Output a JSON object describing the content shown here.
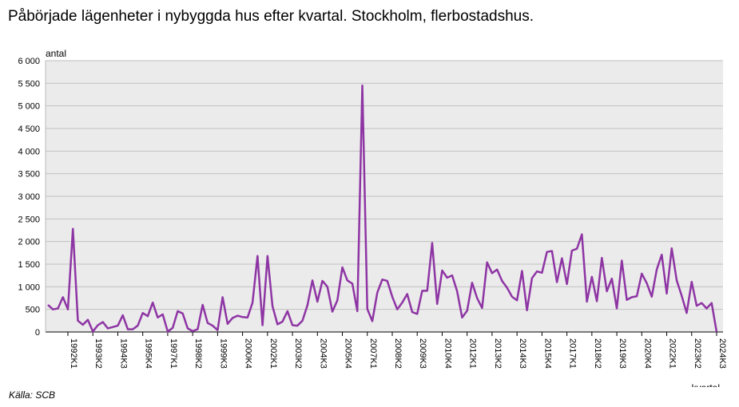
{
  "chart_data": {
    "type": "line",
    "title": "Påbörjade lägenheter i nybyggda hus efter kvartal. Stockholm, flerbostadshus.",
    "ylabel": "antal",
    "xlabel": "kvartal",
    "source": "Källa: SCB",
    "ylim": [
      0,
      6000
    ],
    "yticks": [
      0,
      500,
      1000,
      1500,
      2000,
      2500,
      3000,
      3500,
      4000,
      4500,
      5000,
      5500,
      6000
    ],
    "ytick_labels": [
      "0",
      "500",
      "1 000",
      "1 500",
      "2 000",
      "2 500",
      "3 000",
      "3 500",
      "4 000",
      "4 500",
      "5 000",
      "5 500",
      "6 000"
    ],
    "grid": true,
    "series_color": "#8e35a4",
    "x_ticks": [
      {
        "index": 4,
        "label": "1992K1"
      },
      {
        "index": 9,
        "label": "1993K2"
      },
      {
        "index": 14,
        "label": "1994K3"
      },
      {
        "index": 19,
        "label": "1995K4"
      },
      {
        "index": 24,
        "label": "1997K1"
      },
      {
        "index": 29,
        "label": "1998K2"
      },
      {
        "index": 34,
        "label": "1999K3"
      },
      {
        "index": 39,
        "label": "2000K4"
      },
      {
        "index": 44,
        "label": "2002K1"
      },
      {
        "index": 49,
        "label": "2003K2"
      },
      {
        "index": 54,
        "label": "2004K3"
      },
      {
        "index": 59,
        "label": "2005K4"
      },
      {
        "index": 64,
        "label": "2007K1"
      },
      {
        "index": 69,
        "label": "2008K2"
      },
      {
        "index": 74,
        "label": "2009K3"
      },
      {
        "index": 79,
        "label": "2010K4"
      },
      {
        "index": 84,
        "label": "2012K1"
      },
      {
        "index": 89,
        "label": "2013K2"
      },
      {
        "index": 94,
        "label": "2014K3"
      },
      {
        "index": 99,
        "label": "2015K4"
      },
      {
        "index": 104,
        "label": "2017K1"
      },
      {
        "index": 109,
        "label": "2018K2"
      },
      {
        "index": 114,
        "label": "2019K3"
      },
      {
        "index": 119,
        "label": "2020K4"
      },
      {
        "index": 124,
        "label": "2022K1"
      },
      {
        "index": 129,
        "label": "2023K2"
      },
      {
        "index": 134,
        "label": "2024K3"
      }
    ],
    "values": [
      600,
      500,
      520,
      770,
      500,
      2280,
      250,
      160,
      270,
      10,
      150,
      220,
      80,
      110,
      140,
      370,
      60,
      60,
      140,
      420,
      350,
      650,
      320,
      390,
      10,
      90,
      460,
      410,
      80,
      20,
      60,
      600,
      200,
      140,
      40,
      770,
      180,
      310,
      360,
      330,
      320,
      650,
      1680,
      150,
      1680,
      570,
      170,
      230,
      460,
      150,
      140,
      250,
      590,
      1140,
      670,
      1130,
      1000,
      450,
      700,
      1430,
      1140,
      1070,
      460,
      5450,
      510,
      240,
      870,
      1160,
      1130,
      780,
      500,
      650,
      840,
      440,
      400,
      910,
      910,
      1970,
      620,
      1360,
      1200,
      1250,
      900,
      320,
      470,
      1090,
      750,
      530,
      1540,
      1300,
      1380,
      1130,
      980,
      780,
      700,
      1350,
      480,
      1190,
      1340,
      1310,
      1770,
      1790,
      1100,
      1630,
      1060,
      1800,
      1840,
      2160,
      670,
      1220,
      680,
      1640,
      900,
      1180,
      520,
      1580,
      710,
      770,
      790,
      1290,
      1080,
      780,
      1380,
      1710,
      850,
      1850,
      1140,
      800,
      420,
      1110,
      580,
      640,
      520,
      640,
      0
    ]
  }
}
